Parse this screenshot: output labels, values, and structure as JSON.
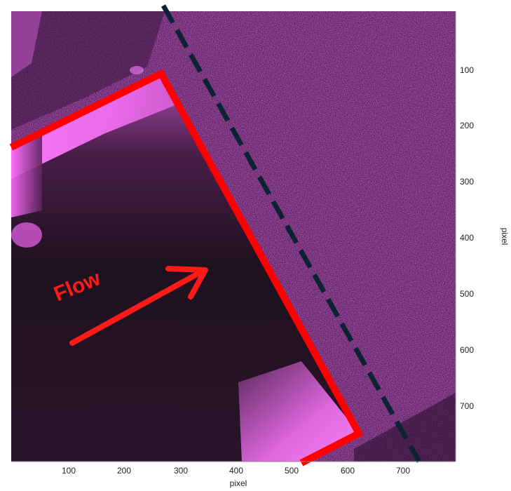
{
  "figure": {
    "annotation_label": "Flow",
    "x_axis": {
      "label": "pixel",
      "ticks": [
        "100",
        "200",
        "300",
        "400",
        "500",
        "600",
        "700"
      ]
    },
    "y_axis": {
      "label": "pixel",
      "ticks": [
        "100",
        "200",
        "300",
        "400",
        "500",
        "600",
        "700"
      ]
    },
    "colors": {
      "background_magenta": "#7a2a7e",
      "bright_magenta": "#ff66ff",
      "dark_region": "#1a0f1a",
      "outline_red": "#ff0000",
      "dashed_line": "#0e2235",
      "flow_text_red": "#ff1a1a"
    }
  }
}
